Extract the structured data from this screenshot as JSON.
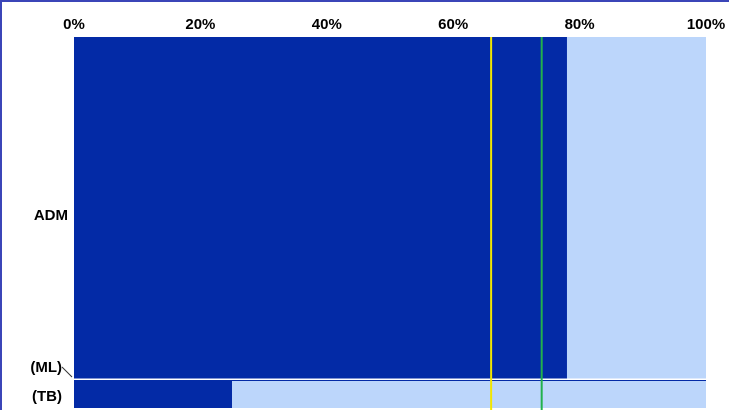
{
  "chart_data": {
    "type": "bar",
    "orientation": "horizontal",
    "stacked_to_100": true,
    "x_ticks": [
      "0%",
      "20%",
      "40%",
      "60%",
      "80%",
      "100%"
    ],
    "xlim": [
      0,
      100
    ],
    "categories": [
      {
        "label": "ADM",
        "sublabel": "(ML)",
        "filled_percent": 78
      },
      {
        "label": "(TB)",
        "filled_percent": 25
      }
    ],
    "reference_lines": [
      {
        "value": 66,
        "color": "#f2e600"
      },
      {
        "value": 74,
        "color": "#22b14c"
      }
    ],
    "colors": {
      "filled": "#032aa6",
      "remainder": "#bcd6fb",
      "frame": "#3b45b8"
    },
    "grid": false,
    "legend": "none"
  }
}
